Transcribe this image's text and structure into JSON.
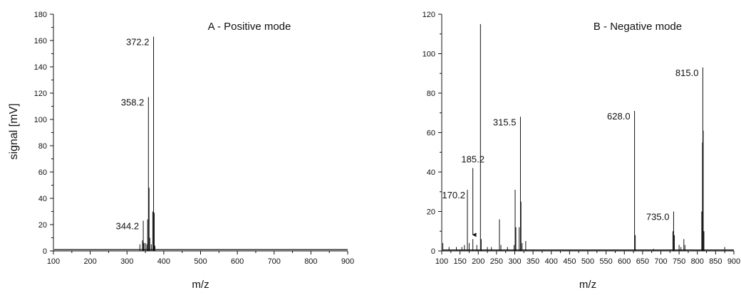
{
  "figure": {
    "ylabel_shared": "signal [mV]"
  },
  "chart_data": [
    {
      "type": "line",
      "panel": "A",
      "title": "A - Positive mode",
      "xlabel": "m/z",
      "ylabel": "signal [mV]",
      "xlim": [
        100,
        900
      ],
      "ylim": [
        0,
        180
      ],
      "x_ticks": [
        100,
        200,
        300,
        400,
        500,
        600,
        700,
        800,
        900
      ],
      "y_ticks": [
        0,
        20,
        40,
        60,
        80,
        100,
        120,
        140,
        160,
        180
      ],
      "grid": false,
      "series": [
        {
          "name": "",
          "peaks": [
            {
              "x": 335,
              "y": 5
            },
            {
              "x": 342,
              "y": 8
            },
            {
              "x": 344.2,
              "y": 23
            },
            {
              "x": 346,
              "y": 6
            },
            {
              "x": 350,
              "y": 6
            },
            {
              "x": 354,
              "y": 5
            },
            {
              "x": 356,
              "y": 24
            },
            {
              "x": 358.2,
              "y": 117
            },
            {
              "x": 360,
              "y": 48
            },
            {
              "x": 362,
              "y": 10
            },
            {
              "x": 366,
              "y": 5
            },
            {
              "x": 370,
              "y": 30
            },
            {
              "x": 372.2,
              "y": 163
            },
            {
              "x": 374,
              "y": 29
            },
            {
              "x": 376,
              "y": 4
            }
          ],
          "baseline": 1
        }
      ],
      "annotations": [
        {
          "label": "372.2",
          "x": 372.2,
          "y": 163
        },
        {
          "label": "358.2",
          "x": 358.2,
          "y": 117
        },
        {
          "label": "344.2",
          "x": 344.2,
          "y": 23
        }
      ]
    },
    {
      "type": "line",
      "panel": "B",
      "title": "B - Negative mode",
      "xlabel": "m/z",
      "ylabel": "",
      "xlim": [
        100,
        900
      ],
      "ylim": [
        0,
        120
      ],
      "x_ticks": [
        100,
        150,
        200,
        250,
        300,
        350,
        400,
        450,
        500,
        550,
        600,
        650,
        700,
        750,
        800,
        850,
        900
      ],
      "y_ticks": [
        0,
        20,
        40,
        60,
        80,
        100,
        120
      ],
      "grid": false,
      "series": [
        {
          "name": "",
          "peaks": [
            {
              "x": 103,
              "y": 4
            },
            {
              "x": 120,
              "y": 2
            },
            {
              "x": 140,
              "y": 2
            },
            {
              "x": 155,
              "y": 2
            },
            {
              "x": 162,
              "y": 3
            },
            {
              "x": 170.2,
              "y": 31
            },
            {
              "x": 175,
              "y": 4
            },
            {
              "x": 185.2,
              "y": 6
            },
            {
              "x": 196,
              "y": 3
            },
            {
              "x": 206,
              "y": 115
            },
            {
              "x": 208,
              "y": 6
            },
            {
              "x": 225,
              "y": 2
            },
            {
              "x": 236,
              "y": 2
            },
            {
              "x": 258,
              "y": 16
            },
            {
              "x": 262,
              "y": 3
            },
            {
              "x": 280,
              "y": 2
            },
            {
              "x": 298,
              "y": 3
            },
            {
              "x": 301,
              "y": 31
            },
            {
              "x": 303,
              "y": 12
            },
            {
              "x": 312,
              "y": 12
            },
            {
              "x": 315.5,
              "y": 68
            },
            {
              "x": 317,
              "y": 25
            },
            {
              "x": 320,
              "y": 4
            },
            {
              "x": 330,
              "y": 5
            },
            {
              "x": 628,
              "y": 71
            },
            {
              "x": 630,
              "y": 8
            },
            {
              "x": 680,
              "y": 1
            },
            {
              "x": 733,
              "y": 10
            },
            {
              "x": 735,
              "y": 20
            },
            {
              "x": 737,
              "y": 8
            },
            {
              "x": 750,
              "y": 3
            },
            {
              "x": 755,
              "y": 2
            },
            {
              "x": 763,
              "y": 6
            },
            {
              "x": 766,
              "y": 3
            },
            {
              "x": 812,
              "y": 20
            },
            {
              "x": 814,
              "y": 55
            },
            {
              "x": 815.0,
              "y": 93
            },
            {
              "x": 816,
              "y": 61
            },
            {
              "x": 818,
              "y": 10
            },
            {
              "x": 875,
              "y": 2
            }
          ],
          "baseline": 0.5
        }
      ],
      "annotations": [
        {
          "label": "815.0",
          "x": 815.0,
          "y": 93
        },
        {
          "label": "628.0",
          "x": 628.0,
          "y": 71
        },
        {
          "label": "315.5",
          "x": 315.5,
          "y": 68
        },
        {
          "label": "185.2",
          "x": 185.2,
          "y": 6,
          "arrow": true
        },
        {
          "label": "170.2",
          "x": 170.2,
          "y": 31
        },
        {
          "label": "735.0",
          "x": 735.0,
          "y": 20
        }
      ]
    }
  ]
}
